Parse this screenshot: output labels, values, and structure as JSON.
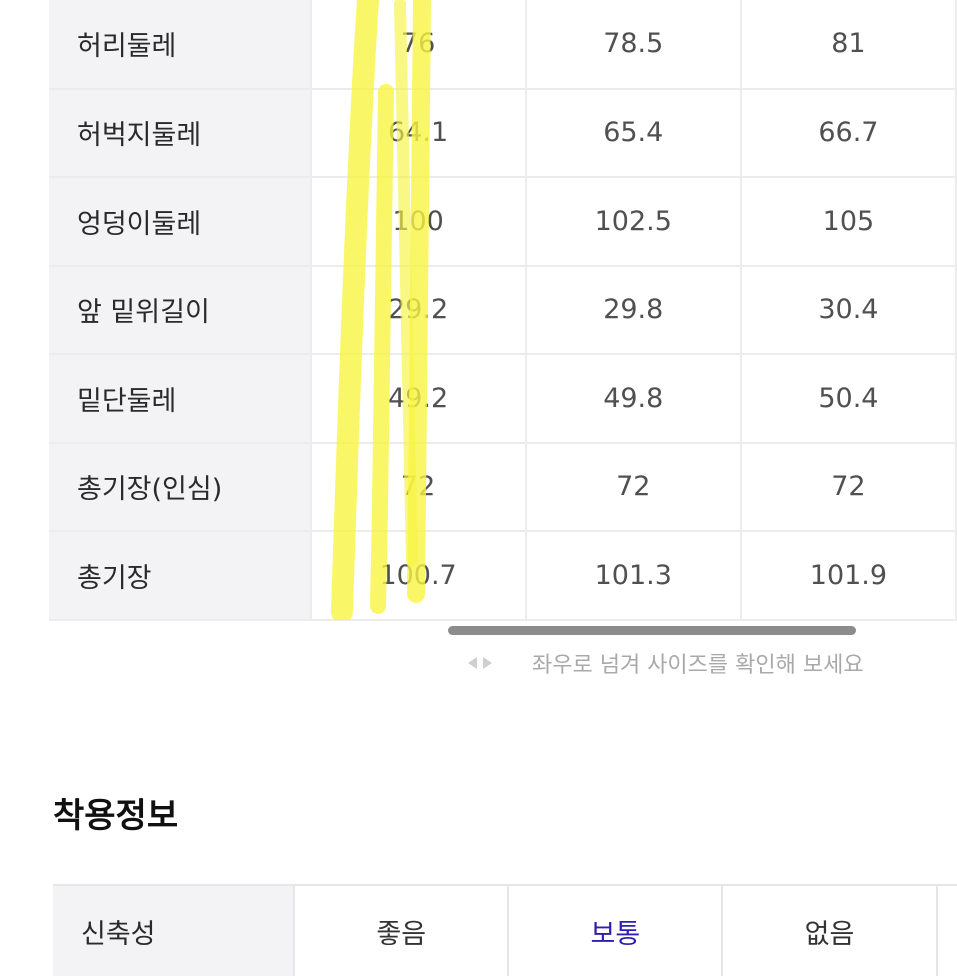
{
  "size_table": {
    "rows": [
      {
        "label": "허리둘레",
        "values": [
          "76",
          "78.5",
          "81"
        ]
      },
      {
        "label": "허벅지둘레",
        "values": [
          "64.1",
          "65.4",
          "66.7"
        ]
      },
      {
        "label": "엉덩이둘레",
        "values": [
          "100",
          "102.5",
          "105"
        ]
      },
      {
        "label": "앞 밑위길이",
        "values": [
          "29.2",
          "29.8",
          "30.4"
        ]
      },
      {
        "label": "밑단둘레",
        "values": [
          "49.2",
          "49.8",
          "50.4"
        ]
      },
      {
        "label": "총기장(인심)",
        "values": [
          "72",
          "72",
          "72"
        ]
      },
      {
        "label": "총기장",
        "values": [
          "100.7",
          "101.3",
          "101.9"
        ]
      }
    ]
  },
  "highlight_color": "#f8f542",
  "scroll_hint": {
    "text": "좌우로 넘겨 사이즈를 확인해 보세요"
  },
  "fit_info": {
    "title": "착용정보",
    "row": {
      "label": "신축성",
      "options": [
        "좋음",
        "보통",
        "없음"
      ],
      "selected": "보통"
    }
  },
  "colors": {
    "selected_option": "#2d1fb0",
    "label_bg": "#f3f3f5"
  }
}
